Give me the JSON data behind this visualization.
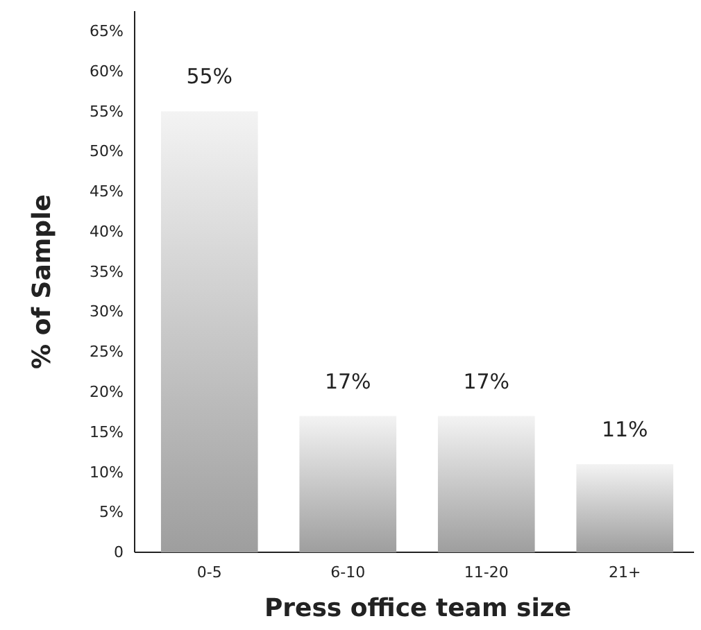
{
  "chart_data": {
    "type": "bar",
    "xlabel": "Press office team size",
    "ylabel": "% of Sample",
    "categories": [
      "0-5",
      "6-10",
      "11-20",
      "21+"
    ],
    "series": [
      {
        "color": "#c4c4c4",
        "values": [
          55,
          17,
          17,
          11
        ],
        "value_labels": [
          "55%",
          "17%",
          "17%",
          "11%"
        ]
      }
    ],
    "ylim": [
      0,
      67.5
    ],
    "yticks": [
      0,
      {
        "value": 5,
        "label": "5%"
      },
      {
        "value": 10,
        "label": "10%"
      },
      {
        "value": 15,
        "label": "15%"
      },
      {
        "value": 20,
        "label": "20%"
      },
      {
        "value": 25,
        "label": "25%"
      },
      {
        "value": 30,
        "label": "30%"
      },
      {
        "value": 35,
        "label": "35%"
      },
      {
        "value": 40,
        "label": "40%"
      },
      {
        "value": 45,
        "label": "45%"
      },
      {
        "value": 50,
        "label": "50%"
      },
      {
        "value": 55,
        "label": "55%"
      },
      {
        "value": 60,
        "label": "60%"
      },
      {
        "value": 65,
        "label": "65%"
      }
    ],
    "grid": false
  }
}
